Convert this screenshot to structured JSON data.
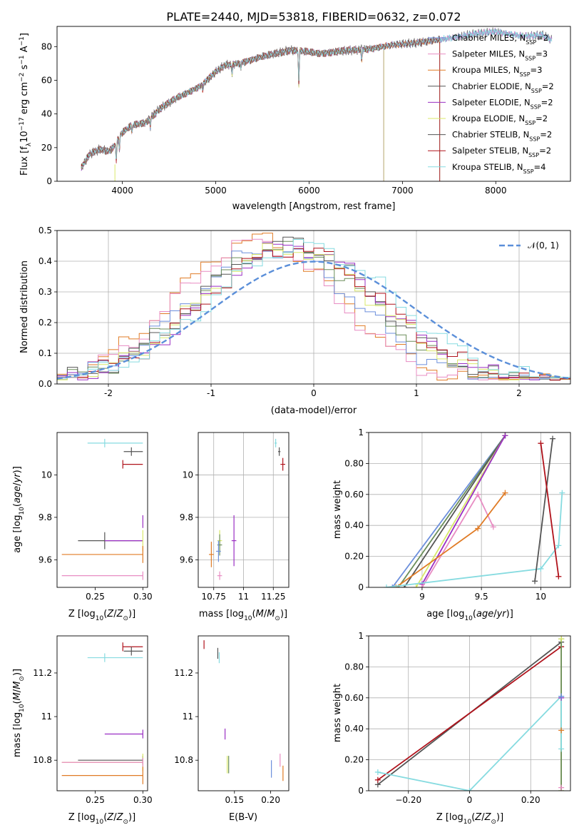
{
  "title": "PLATE=2440, MJD=53818, FIBERID=0632, z=0.072",
  "colors": {
    "blue": "#6c8fdc",
    "pink": "#e88cc3",
    "orange": "#e07b25",
    "dgray": "#555555",
    "purple": "#9a2fc3",
    "yellow": "#d9e86a",
    "green": "#6b8e5a",
    "red": "#b0121b",
    "cyan": "#86dbe0",
    "gray_spectrum": "#777777",
    "grid": "#b0b0b0"
  },
  "chart_data": [
    {
      "type": "line",
      "xlabel": "wavelength [Angstrom, rest frame]",
      "ylabel": "Flux [f_λ10^-17 erg cm^-2 s^-1 A^-1]",
      "xlim": [
        3300,
        8800
      ],
      "ylim": [
        0,
        92
      ],
      "xticks": [
        4000,
        5000,
        6000,
        7000,
        8000
      ],
      "yticks": [
        0,
        20,
        40,
        60,
        80
      ],
      "grid": false,
      "legend_position": "top-right",
      "spectrum_knots": [
        [
          3560,
          8
        ],
        [
          3650,
          16
        ],
        [
          3760,
          19
        ],
        [
          3860,
          18
        ],
        [
          3930,
          22
        ],
        [
          3980,
          28
        ],
        [
          4100,
          33
        ],
        [
          4250,
          35
        ],
        [
          4400,
          43
        ],
        [
          4600,
          50
        ],
        [
          4850,
          57
        ],
        [
          5000,
          65
        ],
        [
          5100,
          69
        ],
        [
          5250,
          70
        ],
        [
          5500,
          74
        ],
        [
          5800,
          78
        ],
        [
          6100,
          76
        ],
        [
          6300,
          77
        ],
        [
          6500,
          78
        ],
        [
          6700,
          79
        ],
        [
          6900,
          81
        ],
        [
          7100,
          82
        ],
        [
          7400,
          84
        ],
        [
          7700,
          87
        ],
        [
          8000,
          89
        ],
        [
          8300,
          86
        ],
        [
          8500,
          87
        ],
        [
          8600,
          84
        ]
      ],
      "absorption_features": [
        [
          3934,
          10
        ],
        [
          3968,
          8
        ],
        [
          4102,
          4
        ],
        [
          4300,
          5
        ],
        [
          4861,
          3
        ],
        [
          5175,
          6
        ],
        [
          5270,
          3
        ],
        [
          5890,
          20
        ],
        [
          6563,
          6
        ]
      ],
      "emission_features": [
        [
          6563,
          8
        ]
      ],
      "series": [
        {
          "name": "Chabrier MILES",
          "nssp": "2",
          "color": "blue",
          "drop_at": null
        },
        {
          "name": "Salpeter MILES",
          "nssp": "3",
          "color": "pink",
          "drop_at": null
        },
        {
          "name": "Kroupa MILES",
          "nssp": "3",
          "color": "orange",
          "drop_at": 7400
        },
        {
          "name": "Chabrier ELODIE",
          "nssp": "2",
          "color": "dgray",
          "drop_at": 6800
        },
        {
          "name": "Salpeter ELODIE",
          "nssp": "2",
          "color": "purple",
          "drop_at": 6800
        },
        {
          "name": "Kroupa ELODIE",
          "nssp": "2",
          "color": "yellow",
          "drop_at": 6800
        },
        {
          "name": "Chabrier STELIB",
          "nssp": "2",
          "color": "dgray",
          "drop_at": 7400
        },
        {
          "name": "Salpeter STELIB",
          "nssp": "2",
          "color": "red",
          "drop_at": 7400
        },
        {
          "name": "Kroupa STELIB",
          "nssp": "4",
          "color": "cyan",
          "drop_at": null
        }
      ]
    },
    {
      "type": "histogram",
      "xlabel": "(data-model)/error",
      "ylabel": "Normed distribution",
      "xlim": [
        -2.5,
        2.5
      ],
      "ylim": [
        0,
        0.5
      ],
      "xticks": [
        -2,
        -1,
        0,
        1,
        2
      ],
      "yticks": [
        0.0,
        0.1,
        0.2,
        0.3,
        0.4,
        0.5
      ],
      "grid": true,
      "legend_position": "top-right",
      "legend": [
        {
          "label": "𝒩(0, 1)"
        }
      ],
      "bin_width": 0.1,
      "histograms": [
        {
          "color": "orange",
          "peak": 0.47,
          "mu": -0.55,
          "sigma": 0.8
        },
        {
          "color": "pink",
          "peak": 0.46,
          "mu": -0.55,
          "sigma": 0.78
        },
        {
          "color": "blue",
          "peak": 0.44,
          "mu": -0.4,
          "sigma": 0.82
        },
        {
          "color": "green",
          "peak": 0.45,
          "mu": -0.3,
          "sigma": 0.84
        },
        {
          "color": "dgray",
          "peak": 0.46,
          "mu": -0.25,
          "sigma": 0.86
        },
        {
          "color": "purple",
          "peak": 0.45,
          "mu": -0.2,
          "sigma": 0.85
        },
        {
          "color": "yellow",
          "peak": 0.44,
          "mu": -0.25,
          "sigma": 0.86
        },
        {
          "color": "red",
          "peak": 0.44,
          "mu": -0.2,
          "sigma": 0.88
        },
        {
          "color": "cyan",
          "peak": 0.45,
          "mu": -0.1,
          "sigma": 0.9
        }
      ]
    },
    {
      "type": "scatter",
      "xlabel": "Z [log10(Z/Z⊙)]",
      "ylabel": "age  [log10(age/yr)]",
      "xlim": [
        0.21,
        0.305
      ],
      "ylim": [
        9.47,
        10.2
      ],
      "xticks": [
        0.25,
        0.3
      ],
      "yticks": [
        9.6,
        9.8,
        10.0
      ],
      "grid": false,
      "points": [
        {
          "x": 0.26,
          "y": 10.15,
          "xl": 0.242,
          "xh": 0.3,
          "ye": 0.02,
          "color": "cyan"
        },
        {
          "x": 0.288,
          "y": 10.11,
          "xl": 0.28,
          "xh": 0.3,
          "ye": 0.02,
          "color": "dgray"
        },
        {
          "x": 0.279,
          "y": 10.05,
          "xl": 0.279,
          "xh": 0.3,
          "ye": 0.02,
          "color": "red"
        },
        {
          "x": 0.3,
          "y": 9.78,
          "xl": 0.3,
          "xh": 0.3,
          "ye": 0.03,
          "color": "purple"
        },
        {
          "x": 0.26,
          "y": 9.69,
          "xl": 0.232,
          "xh": 0.3,
          "ye": 0.04,
          "color": "dgray"
        },
        {
          "x": 0.26,
          "y": 9.69,
          "xl": 0.26,
          "xh": 0.3,
          "ye": 0.0,
          "color": "purple"
        },
        {
          "x": 0.3,
          "y": 9.69,
          "xl": 0.3,
          "xh": 0.3,
          "ye": 0.05,
          "color": "yellow"
        },
        {
          "x": 0.3,
          "y": 9.625,
          "xl": 0.215,
          "xh": 0.3,
          "ye": 0.04,
          "color": "orange"
        },
        {
          "x": 0.3,
          "y": 9.525,
          "xl": 0.215,
          "xh": 0.3,
          "ye": 0.02,
          "color": "pink"
        }
      ]
    },
    {
      "type": "scatter",
      "xlabel": "mass [log10(M/M⊙)]",
      "ylabel": "",
      "xlim": [
        10.62,
        11.38
      ],
      "ylim": [
        9.47,
        10.2
      ],
      "xticks": [
        10.75,
        11.0,
        11.25
      ],
      "yticks": [
        9.6,
        9.8,
        10.0
      ],
      "grid": true,
      "points": [
        {
          "x": 11.27,
          "y": 10.15,
          "xe": 0.01,
          "ye": 0.02,
          "color": "cyan"
        },
        {
          "x": 11.3,
          "y": 10.11,
          "xe": 0.01,
          "ye": 0.02,
          "color": "dgray"
        },
        {
          "x": 11.33,
          "y": 10.05,
          "xe": 0.02,
          "ye": 0.03,
          "color": "red"
        },
        {
          "x": 10.92,
          "y": 9.69,
          "xe": 0.02,
          "ye": 0.12,
          "color": "purple"
        },
        {
          "x": 10.8,
          "y": 9.69,
          "xe": 0.02,
          "ye": 0.05,
          "color": "yellow"
        },
        {
          "x": 10.8,
          "y": 9.67,
          "xe": 0.02,
          "ye": 0.05,
          "color": "green"
        },
        {
          "x": 10.79,
          "y": 9.64,
          "xe": 0.02,
          "ye": 0.05,
          "color": "blue"
        },
        {
          "x": 10.73,
          "y": 9.625,
          "xe": 0.02,
          "ye": 0.06,
          "color": "orange"
        },
        {
          "x": 10.8,
          "y": 9.525,
          "xe": 0.02,
          "ye": 0.02,
          "color": "pink"
        }
      ]
    },
    {
      "type": "line",
      "xlabel": "age  [log10(age/yr)]",
      "ylabel": "mass weight",
      "xlim": [
        8.55,
        10.25
      ],
      "ylim": [
        0,
        1
      ],
      "xticks": [
        9.0,
        9.5,
        10.0
      ],
      "yticks": [
        0.0,
        0.2,
        0.4,
        0.6,
        0.8,
        1.0
      ],
      "grid": true,
      "lines": [
        {
          "color": "blue",
          "pts": [
            [
              8.75,
              0.0
            ],
            [
              9.7,
              0.98
            ]
          ]
        },
        {
          "color": "green",
          "pts": [
            [
              8.8,
              0.0
            ],
            [
              9.7,
              0.98
            ]
          ]
        },
        {
          "color": "dgray",
          "pts": [
            [
              8.85,
              0.0
            ],
            [
              9.7,
              0.98
            ]
          ]
        },
        {
          "color": "yellow",
          "pts": [
            [
              8.95,
              0.0
            ],
            [
              9.7,
              0.98
            ]
          ]
        },
        {
          "color": "purple",
          "pts": [
            [
              9.0,
              0.02
            ],
            [
              9.7,
              0.98
            ]
          ]
        },
        {
          "color": "pink",
          "pts": [
            [
              9.0,
              0.0
            ],
            [
              9.47,
              0.6
            ],
            [
              9.6,
              0.39
            ]
          ]
        },
        {
          "color": "orange",
          "pts": [
            [
              8.78,
              0.0
            ],
            [
              9.47,
              0.38
            ],
            [
              9.7,
              0.61
            ]
          ]
        },
        {
          "color": "cyan",
          "pts": [
            [
              8.7,
              0.0
            ],
            [
              10.0,
              0.12
            ],
            [
              10.15,
              0.27
            ],
            [
              10.18,
              0.61
            ]
          ]
        },
        {
          "color": "dgray",
          "pts": [
            [
              9.95,
              0.04
            ],
            [
              10.1,
              0.96
            ]
          ]
        },
        {
          "color": "red",
          "pts": [
            [
              10.0,
              0.93
            ],
            [
              10.15,
              0.07
            ]
          ]
        }
      ]
    },
    {
      "type": "scatter",
      "xlabel": "Z [log10(Z/Z⊙)]",
      "ylabel": "mass [log10(M/M⊙)]",
      "xlim": [
        0.21,
        0.305
      ],
      "ylim": [
        10.66,
        11.37
      ],
      "xticks": [
        0.25,
        0.3
      ],
      "yticks": [
        10.8,
        11.0,
        11.2
      ],
      "grid": false,
      "points": [
        {
          "x": 0.279,
          "y": 11.32,
          "xl": 0.279,
          "xh": 0.3,
          "ye": 0.02,
          "color": "red"
        },
        {
          "x": 0.288,
          "y": 11.3,
          "xl": 0.28,
          "xh": 0.3,
          "ye": 0.02,
          "color": "dgray"
        },
        {
          "x": 0.26,
          "y": 11.27,
          "xl": 0.242,
          "xh": 0.3,
          "ye": 0.02,
          "color": "cyan"
        },
        {
          "x": 0.3,
          "y": 10.92,
          "xl": 0.26,
          "xh": 0.3,
          "ye": 0.02,
          "color": "purple"
        },
        {
          "x": 0.3,
          "y": 10.8,
          "xl": 0.232,
          "xh": 0.3,
          "ye": 0.02,
          "color": "dgray"
        },
        {
          "x": 0.3,
          "y": 10.79,
          "xl": 0.215,
          "xh": 0.3,
          "ye": 0.04,
          "color": "yellow"
        },
        {
          "x": 0.3,
          "y": 10.79,
          "xl": 0.215,
          "xh": 0.3,
          "ye": 0.02,
          "color": "pink"
        },
        {
          "x": 0.3,
          "y": 10.73,
          "xl": 0.215,
          "xh": 0.3,
          "ye": 0.04,
          "color": "orange"
        }
      ]
    },
    {
      "type": "scatter",
      "xlabel": "E(B-V)",
      "ylabel": "",
      "xlim": [
        0.1,
        0.225
      ],
      "ylim": [
        10.66,
        11.37
      ],
      "xticks": [
        0.15,
        0.2
      ],
      "yticks": [
        10.8,
        11.0,
        11.2
      ],
      "grid": false,
      "points": [
        {
          "x": 0.108,
          "y": 11.33,
          "ye": 0.02,
          "color": "red"
        },
        {
          "x": 0.127,
          "y": 11.29,
          "ye": 0.025,
          "color": "dgray"
        },
        {
          "x": 0.129,
          "y": 11.27,
          "ye": 0.025,
          "color": "cyan"
        },
        {
          "x": 0.137,
          "y": 10.92,
          "ye": 0.025,
          "color": "purple"
        },
        {
          "x": 0.14,
          "y": 10.78,
          "ye": 0.04,
          "color": "yellow"
        },
        {
          "x": 0.142,
          "y": 10.78,
          "ye": 0.04,
          "color": "green"
        },
        {
          "x": 0.201,
          "y": 10.76,
          "ye": 0.04,
          "color": "blue"
        },
        {
          "x": 0.213,
          "y": 10.8,
          "ye": 0.03,
          "color": "pink"
        },
        {
          "x": 0.217,
          "y": 10.74,
          "ye": 0.035,
          "color": "orange"
        }
      ]
    },
    {
      "type": "line",
      "xlabel": "Z [log10(Z/Z⊙)]",
      "ylabel": "mass weight",
      "xlim": [
        -0.33,
        0.33
      ],
      "ylim": [
        0,
        1
      ],
      "xticks": [
        -0.2,
        0.0,
        0.2
      ],
      "yticks": [
        0.0,
        0.2,
        0.4,
        0.6,
        0.8,
        1.0
      ],
      "grid": true,
      "lines": [
        {
          "color": "dgray",
          "pts": [
            [
              -0.3,
              0.04
            ],
            [
              0.3,
              0.96
            ]
          ]
        },
        {
          "color": "red",
          "pts": [
            [
              -0.3,
              0.07
            ],
            [
              0.3,
              0.93
            ]
          ]
        },
        {
          "color": "cyan",
          "pts": [
            [
              -0.3,
              0.12
            ],
            [
              0.0,
              0.0
            ],
            [
              0.3,
              0.61
            ]
          ]
        },
        {
          "color": "yellow",
          "pts": [
            [
              0.3,
              0.0
            ],
            [
              0.3,
              0.98
            ]
          ]
        },
        {
          "color": "green",
          "pts": [
            [
              0.3,
              0.0
            ],
            [
              0.3,
              0.98
            ]
          ]
        },
        {
          "color": "cyan",
          "pts": [
            [
              0.3,
              0.27
            ],
            [
              0.3,
              0.61
            ]
          ]
        }
      ],
      "markers_at_z": 0.3
    }
  ]
}
